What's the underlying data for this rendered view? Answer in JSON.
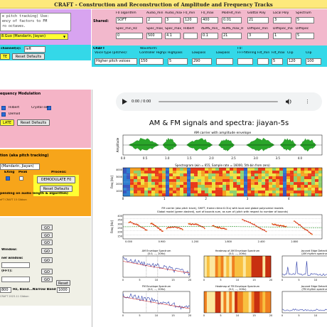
{
  "title": "CRAFT - Construction and Reconstruction of Amplitude and Frequency Tracks",
  "top_left": {
    "text_line1": "e pitch tracking) Use:",
    "text_line2": "ency of factors to FM",
    "text_line3": "ro octaves.",
    "speaker_select": "8.Guo (Mandarin, Jiayan)",
    "row_labels": [
      "channel(s):",
      "left"
    ],
    "reset_button": "Reset Defaults",
    "apply_button": "TE"
  },
  "shared": {
    "label": "Shared:",
    "headers": [
      "F0 algorithm",
      "Audio_min",
      "Audio_max",
      "F0_min",
      "F0_max",
      "ModFilt_min",
      "Glottal Poly",
      "Local Poly",
      "Spectrum"
    ],
    "values": [
      "SOFT",
      "2",
      "3",
      "120",
      "400",
      "0.01",
      "21",
      "3",
      "5"
    ],
    "headers2": [
      "Spec_min_Hz",
      "Spec_max_Hz",
      "Spec_max_kHz",
      "Hilbert",
      "AEMS_min_Hz",
      "AEMS_max_Hz",
      "Diffspec_min",
      "Diffspec_max",
      "Diffspec"
    ],
    "values2": [
      "0",
      "500",
      "4.1",
      "",
      "0.1",
      "21",
      "3",
      "1",
      "5"
    ]
  },
  "craft": {
    "label": "CRAFT",
    "subheaders": [
      "Waveform:",
      "F0:"
    ],
    "headers": [
      "Voice type (pitches):",
      "Controller Highpass",
      "Highpass",
      "Lowpass",
      "Lowpass",
      "FFT-filtering",
      "Filt_min",
      "Filt_max",
      "Clip",
      "Clip"
    ],
    "select_value": "Higher pitch voices",
    "values": [
      "0.1",
      "150",
      "5",
      "290",
      "",
      "",
      "",
      "5",
      "120",
      "100"
    ]
  },
  "freq_mod": {
    "heading": "equency Modulation",
    "options": [
      "Hilbert",
      "Crystal set",
      "Demod"
    ],
    "apply_button": "LATE",
    "reset_button": "Reset Defaults"
  },
  "pitch_panel": {
    "heading": "tion (aka pitch tracking)",
    "speaker_select": "(Mandarin, Jiayan)",
    "col_labels": [
      "EXing",
      "Peak",
      "Process:"
    ],
    "demodulate_button": "DEMODULATE F0",
    "reset_button": "Reset Defaults",
    "note_line1": "pending on audio length & algorithm)",
    "note_line2": "eFT CRAFT 15 Gibbon"
  },
  "left_bottom": {
    "go_buttons": [
      "GO",
      "GO",
      "GO",
      "GO",
      "GO",
      "GO",
      "GO",
      "Reset"
    ],
    "labels": [
      "Window:",
      "nel window:",
      "(FFT):"
    ],
    "select_values": [
      "",
      ""
    ],
    "hz_label": "Hz, Band...Narrow Band",
    "hz_values": [
      "800",
      "1000"
    ],
    "footer": "CRAFT 2023-11 Gibbon"
  },
  "audio": {
    "time": "0:00 / 0:00"
  },
  "figure": {
    "title": "AM & FM signals and spectra: jiayan-5s",
    "waveform_caption": "AM carrier with amplitude envelope",
    "waveform_ylabel": "Amplitude",
    "waveform_xticks": [
      "0.0",
      "0.5",
      "1.0",
      "1.5",
      "2.0",
      "2.5",
      "3.0",
      "3.5",
      "4.0"
    ],
    "spectrogram_caption": "Spectrogram (win = 655, Sample rate = 16000, 5th-bin from zero)",
    "spectrogram_ylabel": "Freq [Hz]",
    "spectrogram_yticks": [
      "4000",
      "3000",
      "2000",
      "1000"
    ],
    "spectrogram_xticks": [
      "0",
      "1",
      "2",
      "3",
      "4"
    ],
    "f0_caption_line1": "FM carrier (aka pitch track), SHIFT, frame=time:0.01s) with local and global polynomial models",
    "f0_caption_line2": "Global model (green dashed), sort of bounds sum, as sum of (pitch with respect to number of bounds)",
    "f0_ylabel": "Freq [Hz]",
    "f0_yticks": [
      "400",
      "350",
      "300",
      "250",
      "200",
      "150"
    ],
    "f0_xticks": [
      "0.000",
      "0.900",
      "1.200",
      "1.800",
      "2.400",
      "2.800"
    ],
    "small_plots": [
      {
        "title": "AM Envelope Spectrum\n(0.0, ..., 20Hz)"
      },
      {
        "title": "Heatmap of AM Envelope Spectrum\n(0.0, ..., 20Hz)"
      },
      {
        "title": "Jaccard Edge Detection\n(AM rhythm spectrum)"
      },
      {
        "title": "FM Envelope Spectrum\n(0.0, ..., 20Hz)"
      },
      {
        "title": "Heatmap of FM Envelope Spectrum\n(0.0, ..., 20Hz)"
      },
      {
        "title": "Jaccard Edge Detection\n(FM rhythm spectrum)"
      }
    ],
    "small_xticks": [
      "0",
      "5",
      "10",
      "15",
      "20"
    ]
  },
  "colors": {
    "top_left_bg": "#d8a4f0",
    "shared_bg": "#f2b8cc",
    "craft_bg": "#34d8e8",
    "fm_bg": "#f5b4c6",
    "pitch_bg": "#f7a51a",
    "left_bottom_bg": "#f0f0e6",
    "select_yellow": "#ffff33",
    "wave_green": "#2aa52a"
  }
}
